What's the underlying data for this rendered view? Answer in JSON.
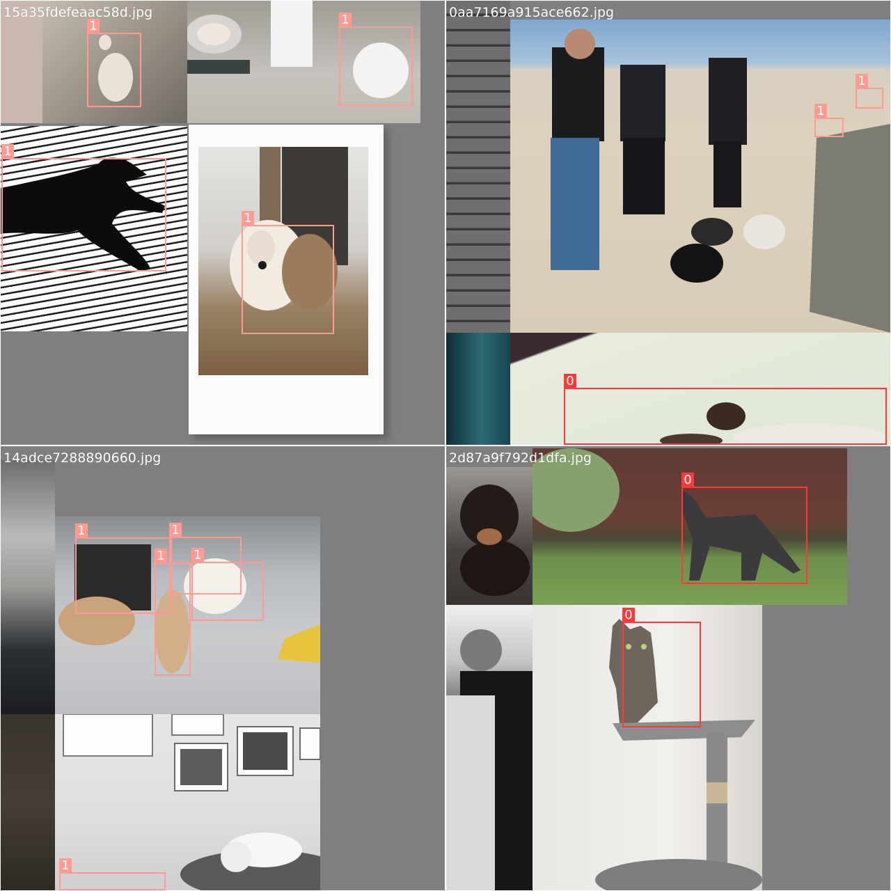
{
  "colors": {
    "dog_box": "#ff9b93",
    "cat_box": "#ff3838",
    "mosaic_fill": "#7f7f7f"
  },
  "mosaics": [
    {
      "filename": "15a35fdefeaac58d.jpg",
      "boxes": [
        "1",
        "1",
        "1",
        "1"
      ]
    },
    {
      "filename": "0aa7169a915ace662.jpg",
      "boxes": [
        "1",
        "1",
        "0"
      ]
    },
    {
      "filename": "14adce7288890660.jpg",
      "boxes": [
        "1",
        "1",
        "1",
        "1",
        "1"
      ]
    },
    {
      "filename": "2d87a9f792d1dfa.jpg",
      "boxes": [
        "0",
        "0"
      ]
    }
  ]
}
